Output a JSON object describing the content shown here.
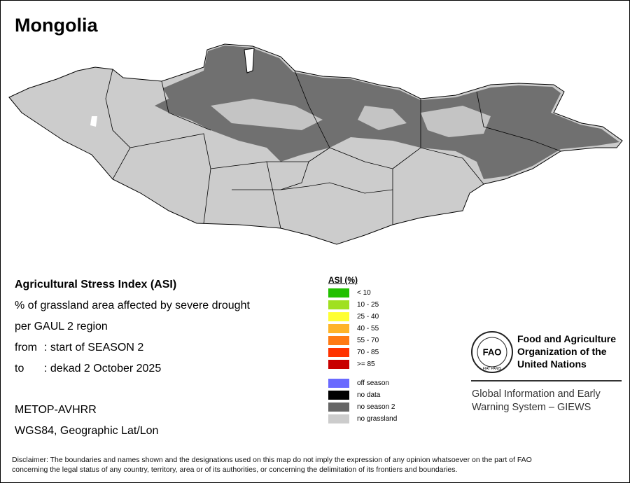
{
  "title": "Mongolia",
  "info": {
    "index": "Agricultural Stress Index (ASI)",
    "measure": "% of grassland area affected by severe drought",
    "unit": "per GAUL 2 region",
    "from": {
      "label": "from",
      "value": ": start of SEASON 2"
    },
    "to": {
      "label": "to",
      "value": ": dekad 2 October 2025"
    },
    "sensor": "METOP-AVHRR",
    "projection": "WGS84, Geographic Lat/Lon"
  },
  "legend": {
    "title": "ASI (%)",
    "classes": [
      {
        "label": "< 10",
        "color": "#22c000"
      },
      {
        "label": "10 - 25",
        "color": "#a0e020"
      },
      {
        "label": "25 - 40",
        "color": "#ffff33"
      },
      {
        "label": "40 - 55",
        "color": "#ffb428"
      },
      {
        "label": "55 - 70",
        "color": "#ff7a14"
      },
      {
        "label": "70 - 85",
        "color": "#ff3300"
      },
      {
        "label": ">= 85",
        "color": "#c80000"
      }
    ],
    "other": [
      {
        "label": "off season",
        "color": "#6a6aff"
      },
      {
        "label": "no data",
        "color": "#000000"
      },
      {
        "label": "no season 2",
        "color": "#666666"
      },
      {
        "label": "no grassland",
        "color": "#cccccc"
      }
    ]
  },
  "logo": {
    "letters": "FAO",
    "motto": "FIAT PANIS",
    "organization": [
      "Food and Agriculture",
      "Organization of the",
      "United Nations"
    ],
    "system": [
      "Global Information and Early",
      "Warning System – GIEWS"
    ]
  },
  "disclaimer": [
    "Disclaimer: The boundaries and names shown and the designations used on this map do not imply the expression of any opinion whatsoever on the part of FAO",
    "concerning the legal status of any country, territory, area or of its authorities, or concerning the delimitation of its frontiers and boundaries."
  ]
}
